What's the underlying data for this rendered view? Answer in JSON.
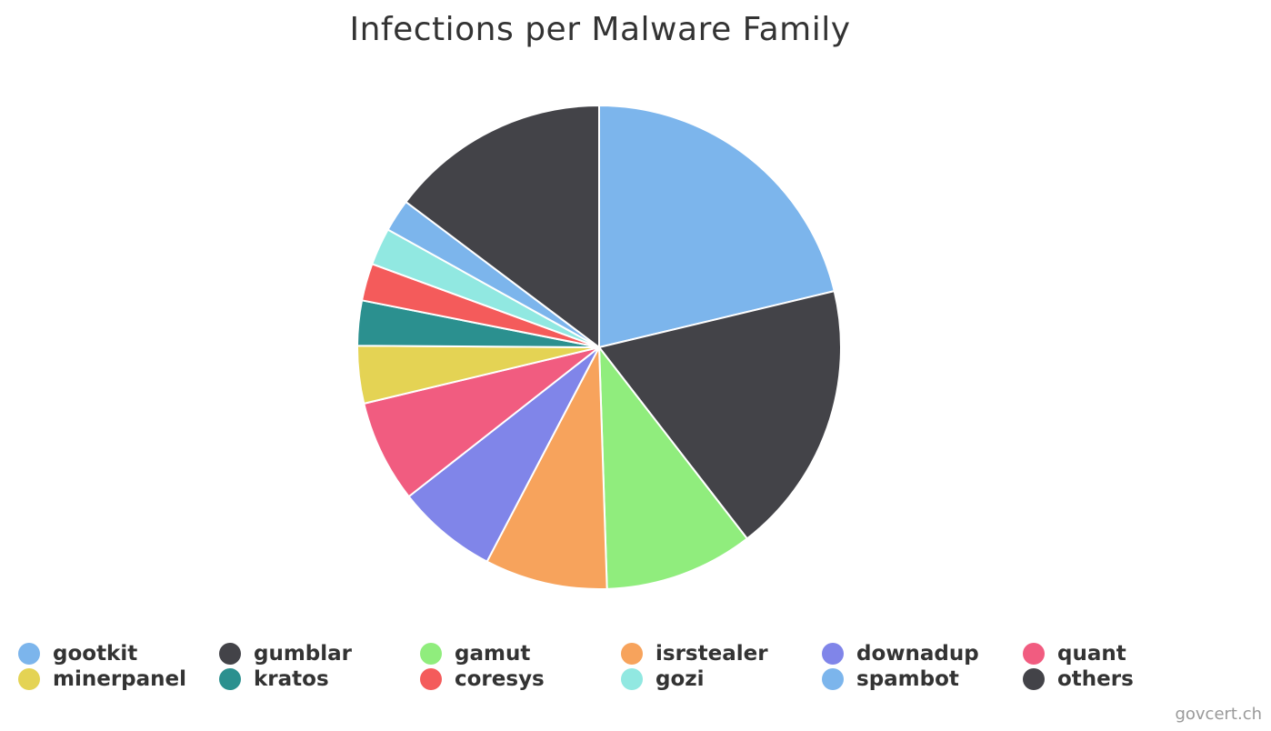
{
  "chart_data": {
    "type": "pie",
    "title": "Infections per Malware Family",
    "series": [
      {
        "name": "gootkit",
        "value": 20.5,
        "color": "#7cb5ec"
      },
      {
        "name": "gumblar",
        "value": 17.6,
        "color": "#434348"
      },
      {
        "name": "gamut",
        "value": 9.6,
        "color": "#90ed7d"
      },
      {
        "name": "isrstealer",
        "value": 7.9,
        "color": "#f7a35c"
      },
      {
        "name": "downadup",
        "value": 6.5,
        "color": "#8085e9"
      },
      {
        "name": "quant",
        "value": 6.6,
        "color": "#f15c80"
      },
      {
        "name": "minerpanel",
        "value": 3.7,
        "color": "#e4d354"
      },
      {
        "name": "kratos",
        "value": 2.9,
        "color": "#2b908f"
      },
      {
        "name": "coresys",
        "value": 2.4,
        "color": "#f45b5b"
      },
      {
        "name": "gozi",
        "value": 2.4,
        "color": "#91e8e1"
      },
      {
        "name": "spambot",
        "value": 2.1,
        "color": "#7cb5ec"
      },
      {
        "name": "others",
        "value": 14.2,
        "color": "#434348"
      }
    ],
    "legend": "bottom"
  },
  "credits": "govcert.ch"
}
